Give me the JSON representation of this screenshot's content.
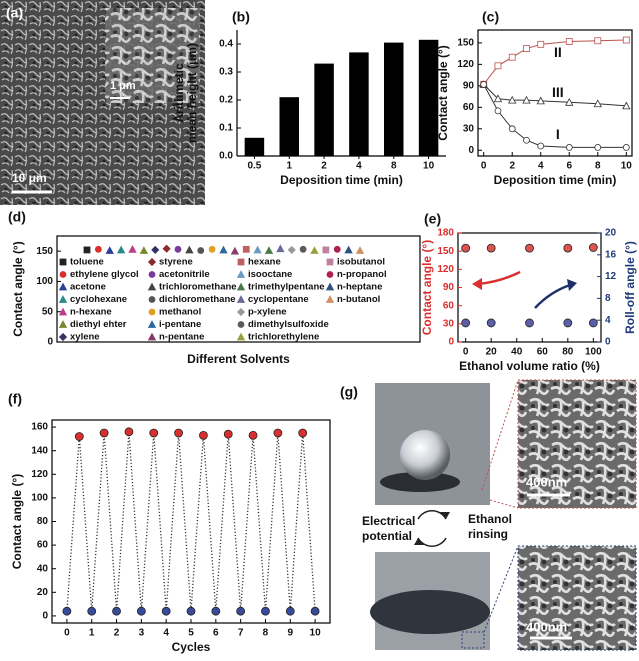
{
  "panel_a": {
    "label": "(a)",
    "inset_scale": "1 μm",
    "scale": "10 μm"
  },
  "chart_data": [
    {
      "type": "bar",
      "label": "(b)",
      "categories": [
        "0.5",
        "1",
        "2",
        "4",
        "8",
        "10"
      ],
      "values": [
        0.065,
        0.21,
        0.33,
        0.37,
        0.405,
        0.415
      ],
      "color": "#000000",
      "ylim": [
        0,
        0.45
      ],
      "yticks": [
        {
          "value": 0,
          "label": "0.0"
        },
        0.1,
        0.2,
        0.3,
        0.4
      ],
      "xlabel": "Deposition time (min)",
      "ylabel": [
        "Arithmetic",
        "mean height (μm)"
      ]
    },
    {
      "type": "line",
      "label": "(c)",
      "xlim": [
        -0.4,
        10.4
      ],
      "ylim": [
        -8,
        168
      ],
      "xticks": [
        0,
        2,
        4,
        6,
        8,
        10
      ],
      "yticks": [
        0,
        30,
        60,
        90,
        120,
        150
      ],
      "xlabel": "Deposition time (min)",
      "ylabel": "Contact angle (°)",
      "line_style": "solid",
      "series": [
        {
          "name": "II",
          "color": "#c0504d",
          "marker": "square",
          "x": [
            0,
            1,
            2,
            3,
            4,
            6,
            8,
            10
          ],
          "values": [
            92,
            118,
            130,
            142,
            148,
            152,
            153,
            154
          ]
        },
        {
          "name": "III",
          "color": "#333333",
          "marker": "triangle",
          "x": [
            0,
            1,
            2,
            3,
            4,
            6,
            8,
            10
          ],
          "values": [
            92,
            72,
            70,
            70,
            69,
            67,
            65,
            62
          ]
        },
        {
          "name": "I",
          "color": "#333333",
          "marker": "circle",
          "x": [
            0,
            1,
            2,
            3,
            4,
            6,
            8,
            10
          ],
          "values": [
            92,
            55,
            30,
            14,
            6,
            4,
            4,
            4
          ]
        }
      ]
    },
    {
      "type": "scatter",
      "label": "(d)",
      "ylim": [
        0,
        175
      ],
      "yticks": [
        0,
        50,
        100,
        150
      ],
      "xlabel": "Different Solvents",
      "ylabel": "Contact angle (°)",
      "series": [
        {
          "name": "toluene",
          "color": "#222222",
          "marker": "square",
          "values": [
            152
          ]
        },
        {
          "name": "ethylene glycol",
          "color": "#d9302f",
          "marker": "circle",
          "values": [
            153
          ]
        },
        {
          "name": "acetone",
          "color": "#2a3f9a",
          "marker": "triangle",
          "values": [
            151
          ]
        },
        {
          "name": "cyclohexane",
          "color": "#2a8a8a",
          "marker": "triangle",
          "values": [
            152
          ]
        },
        {
          "name": "n-hexane",
          "color": "#c03a8a",
          "marker": "triangle",
          "values": [
            153
          ]
        },
        {
          "name": "diethyl ehter",
          "color": "#7a8a2a",
          "marker": "triangle",
          "values": [
            151
          ]
        },
        {
          "name": "xylene",
          "color": "#333366",
          "marker": "diamond",
          "values": [
            152
          ]
        },
        {
          "name": "styrene",
          "color": "#8a2a2a",
          "marker": "diamond",
          "values": [
            154
          ]
        },
        {
          "name": "acetonitrile",
          "color": "#7a3a9a",
          "marker": "circle",
          "values": [
            153
          ]
        },
        {
          "name": "trichloromethane",
          "color": "#444444",
          "marker": "triangle",
          "values": [
            152
          ]
        },
        {
          "name": "dichloromethane",
          "color": "#555555",
          "marker": "circle",
          "values": [
            151
          ]
        },
        {
          "name": "methanol",
          "color": "#e0a020",
          "marker": "circle",
          "values": [
            153
          ]
        },
        {
          "name": "i-pentane",
          "color": "#2a6aa0",
          "marker": "triangle",
          "values": [
            152
          ]
        },
        {
          "name": "n-pentane",
          "color": "#8a3a6a",
          "marker": "triangle",
          "values": [
            150
          ]
        },
        {
          "name": "hexane",
          "color": "#c06060",
          "marker": "square",
          "values": [
            153
          ]
        },
        {
          "name": "isooctane",
          "color": "#6a9ac0",
          "marker": "triangle",
          "values": [
            152
          ]
        },
        {
          "name": "trimethylpentane",
          "color": "#4a7a4a",
          "marker": "triangle",
          "values": [
            151
          ]
        },
        {
          "name": "cyclopentane",
          "color": "#6a6a9a",
          "marker": "triangle",
          "values": [
            154
          ]
        },
        {
          "name": "p-xylene",
          "color": "#999999",
          "marker": "diamond",
          "values": [
            152
          ]
        },
        {
          "name": "dimethylsulfoxide",
          "color": "#5a5a5a",
          "marker": "circle",
          "values": [
            153
          ]
        },
        {
          "name": "trichlorethylene",
          "color": "#9aa040",
          "marker": "triangle",
          "values": [
            151
          ]
        },
        {
          "name": "isobutanol",
          "color": "#c080a0",
          "marker": "square",
          "values": [
            152
          ]
        },
        {
          "name": "n-propanol",
          "color": "#b02050",
          "marker": "circle",
          "values": [
            153
          ]
        },
        {
          "name": "n-heptane",
          "color": "#305080",
          "marker": "triangle",
          "values": [
            152
          ]
        },
        {
          "name": "n-butanol",
          "color": "#d09060",
          "marker": "triangle",
          "values": [
            151
          ]
        }
      ]
    },
    {
      "type": "scatter",
      "label": "(e)",
      "xlim": [
        -6,
        106
      ],
      "ylim": [
        0,
        180
      ],
      "y2lim": [
        0,
        20
      ],
      "xticks": [
        0,
        20,
        40,
        60,
        80,
        100
      ],
      "yticks": [
        0,
        30,
        60,
        90,
        120,
        150,
        180
      ],
      "y2ticks": [
        0,
        4,
        8,
        12,
        16,
        20
      ],
      "xlabel": "Ethanol volume ratio (%)",
      "ylabel": "Contact angle (°)",
      "y2label": "Roll-off angle (°)",
      "ylabel_color": "#d9302f",
      "y2label_color": "#1f3a7a",
      "series": [
        {
          "color": "#d9534f",
          "marker": "ball",
          "x": [
            0,
            20,
            50,
            80,
            100
          ],
          "values": [
            155,
            155,
            155,
            155,
            156
          ]
        },
        {
          "color": "#5a5fa8",
          "marker": "ball",
          "axis": "y2",
          "x": [
            0,
            20,
            50,
            80,
            100
          ],
          "values": [
            3.5,
            3.5,
            3.5,
            3.5,
            3.5
          ]
        }
      ]
    },
    {
      "type": "line",
      "label": "(f)",
      "xlim": [
        -0.6,
        10.6
      ],
      "ylim": [
        -6,
        166
      ],
      "xticks": [
        0,
        1,
        2,
        3,
        4,
        5,
        6,
        7,
        8,
        9,
        10
      ],
      "yticks": [
        0,
        20,
        40,
        60,
        80,
        100,
        120,
        140,
        160
      ],
      "xlabel": "Cycles",
      "ylabel": "Contact angle (°)",
      "line_style": "dotted",
      "series": [
        {
          "color": "#333333",
          "marker": "ball",
          "x": [
            0,
            0.5,
            1,
            1.5,
            2,
            2.5,
            3,
            3.5,
            4,
            4.5,
            5,
            5.5,
            6,
            6.5,
            7,
            7.5,
            8,
            8.5,
            9,
            9.5,
            10
          ],
          "values": [
            4,
            152,
            4,
            155,
            4,
            156,
            4,
            155,
            4,
            155,
            4,
            153,
            4,
            154,
            4,
            153,
            4,
            155,
            4,
            155,
            4
          ],
          "point_colors": [
            "#3a4a9a",
            "#d9302f",
            "#3a4a9a",
            "#d9302f",
            "#3a4a9a",
            "#d9302f",
            "#3a4a9a",
            "#d9302f",
            "#3a4a9a",
            "#d9302f",
            "#3a4a9a",
            "#d9302f",
            "#3a4a9a",
            "#d9302f",
            "#3a4a9a",
            "#d9302f",
            "#3a4a9a",
            "#d9302f",
            "#3a4a9a",
            "#d9302f",
            "#3a4a9a"
          ]
        }
      ]
    }
  ],
  "panel_g": {
    "label": "(g)",
    "scale_top": "400nm",
    "scale_bottom": "400nm",
    "left_text": [
      "Electrical",
      "potential"
    ],
    "right_text": [
      "Ethanol",
      "rinsing"
    ]
  }
}
